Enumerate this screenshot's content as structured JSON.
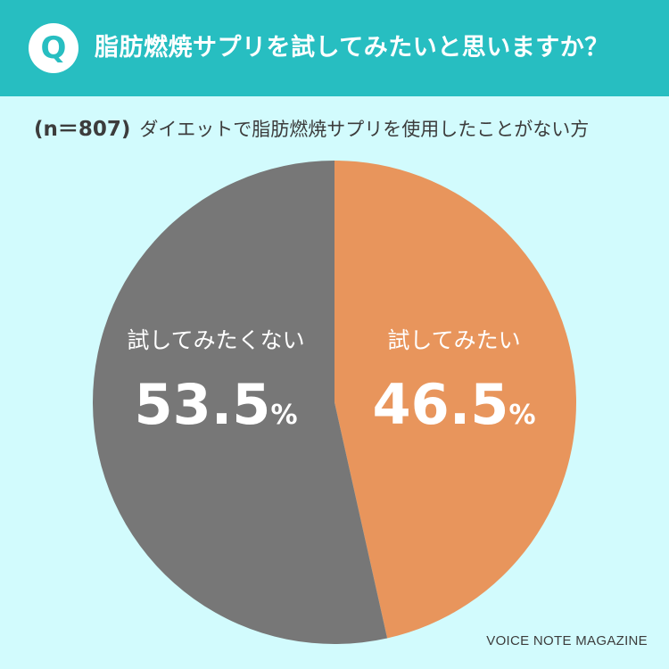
{
  "header": {
    "badge": "Q",
    "question": "脂肪燃焼サプリを試してみたいと思いますか？"
  },
  "subtitle": {
    "sample": "(n＝807)",
    "text": "ダイエットで脂肪燃焼サプリを使用したことがない方"
  },
  "chart_data": {
    "type": "pie",
    "slices": [
      {
        "label": "試してみたい",
        "value": 46.5,
        "color": "#e8955c"
      },
      {
        "label": "試してみたくない",
        "value": 53.5,
        "color": "#777777"
      }
    ],
    "unit": "%",
    "start_angle": "12 o'clock",
    "direction": "clockwise"
  },
  "credit": "VOICE NOTE MAGAZINE",
  "colors": {
    "header": "#27bec1",
    "background": "#d2fbfd",
    "label_text": "#ffffff"
  }
}
